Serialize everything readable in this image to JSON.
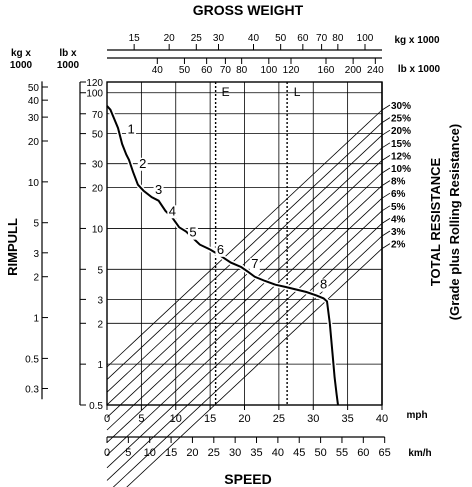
{
  "chart_data": {
    "type": "line",
    "title": "GROSS WEIGHT",
    "xlabel": "SPEED",
    "ylabel": "RIMPULL",
    "right_label_1": "TOTAL RESISTANCE",
    "right_label_2": "(Grade plus Rolling Resistance)",
    "x_unit_mph": "mph",
    "x_unit_kmh": "km/h",
    "weight_unit_kg": "kg x 1000",
    "weight_unit_lb": "lb x 1000",
    "rimpull_unit_kg": [
      "kg x",
      "1000"
    ],
    "rimpull_unit_lb": [
      "lb x",
      "1000"
    ],
    "x_mph_ticks": [
      0,
      5,
      10,
      15,
      20,
      25,
      30,
      35,
      40
    ],
    "x_kmh_ticks": [
      0,
      5,
      10,
      15,
      20,
      25,
      30,
      35,
      40,
      45,
      50,
      55,
      60,
      65
    ],
    "y_lb_ticks": [
      0.5,
      1,
      2,
      3,
      5,
      10,
      20,
      30,
      50,
      70,
      100,
      120
    ],
    "y_kg_ticks": [
      0.3,
      0.5,
      1,
      2,
      3,
      5,
      10,
      20,
      30,
      40,
      50
    ],
    "gross_weight_kg_ticks": [
      15,
      20,
      25,
      30,
      40,
      50,
      60,
      70,
      80,
      100
    ],
    "gross_weight_lb_ticks": [
      40,
      50,
      60,
      70,
      80,
      100,
      120,
      160,
      200,
      240
    ],
    "resistance_labels": [
      "30%",
      "25%",
      "20%",
      "15%",
      "12%",
      "10%",
      "8%",
      "6%",
      "5%",
      "4%",
      "3%",
      "2%"
    ],
    "reference_lines": [
      {
        "label": "E",
        "speed_mph": 15.8
      },
      {
        "label": "L",
        "speed_mph": 26.2
      }
    ],
    "gear_labels": [
      {
        "label": "1",
        "speed_mph": 3.5,
        "rimpull_lb": 50
      },
      {
        "label": "2",
        "speed_mph": 5.2,
        "rimpull_lb": 28
      },
      {
        "label": "3",
        "speed_mph": 7.5,
        "rimpull_lb": 18
      },
      {
        "label": "4",
        "speed_mph": 9.5,
        "rimpull_lb": 12.5
      },
      {
        "label": "5",
        "speed_mph": 12.5,
        "rimpull_lb": 8.7
      },
      {
        "label": "6",
        "speed_mph": 16.5,
        "rimpull_lb": 6.5
      },
      {
        "label": "7",
        "speed_mph": 21.5,
        "rimpull_lb": 5.1
      },
      {
        "label": "8",
        "speed_mph": 31.5,
        "rimpull_lb": 3.6
      }
    ],
    "series": [
      {
        "x": [
          0,
          0.5,
          1.0,
          1.6,
          2.2,
          2.8,
          3.2,
          3.8,
          4.5,
          5.3,
          6.5,
          7.5,
          8.5,
          9.5,
          10.5,
          11.5,
          12.5,
          13.5,
          15.0,
          16.5,
          18.0,
          19.5,
          20.5,
          21.5,
          23.0,
          24.5,
          26.0,
          27.5,
          29.0,
          30.5,
          31.5,
          32.0,
          32.4,
          32.8,
          33.1,
          33.4,
          33.6
        ],
        "y": [
          80,
          75,
          65,
          55,
          42,
          35,
          32,
          26,
          21,
          19,
          17,
          16,
          13.5,
          12,
          10.2,
          9.5,
          8.5,
          7.6,
          7.0,
          6.3,
          5.6,
          5.2,
          4.8,
          4.4,
          4.1,
          3.85,
          3.7,
          3.55,
          3.4,
          3.2,
          3.05,
          2.9,
          2.0,
          1.2,
          0.8,
          0.6,
          0.5
        ]
      }
    ],
    "xlim": [
      0,
      40
    ],
    "ylim": [
      0.5,
      120
    ],
    "yscale": "log",
    "grid": true
  }
}
